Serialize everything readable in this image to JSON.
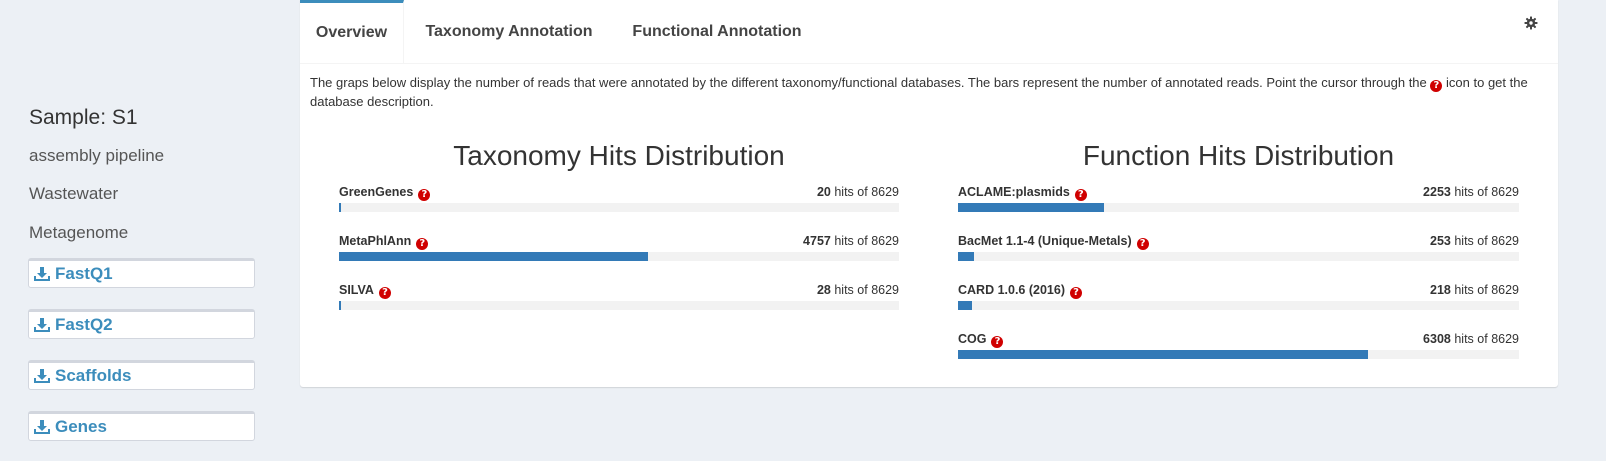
{
  "sidebar": {
    "sample_title": "Sample: S1",
    "meta": [
      "assembly pipeline",
      "Wastewater",
      "Metagenome"
    ],
    "downloads": [
      {
        "label": "FastQ1",
        "icon": "download-icon"
      },
      {
        "label": "FastQ2",
        "icon": "download-icon"
      },
      {
        "label": "Scaffolds",
        "icon": "download-icon"
      },
      {
        "label": "Genes",
        "icon": "download-icon"
      }
    ]
  },
  "tabs": [
    {
      "label": "Overview",
      "active": true
    },
    {
      "label": "Taxonomy Annotation",
      "active": false
    },
    {
      "label": "Functional Annotation",
      "active": false
    }
  ],
  "description": {
    "before_icon": "The graps below display the number of reads that were annotated by the different taxonomy/functional databases. The bars represent the number of annotated reads. Point the cursor through the",
    "after_icon": "icon to get the database description."
  },
  "hits_suffix": "hits of",
  "help_glyph": "?",
  "accent_color": "#3c8dbc",
  "bar_color": "#337ab7",
  "help_icon_color": "#d00000",
  "chart_data": [
    {
      "type": "bar",
      "title": "Taxonomy Hits Distribution",
      "total": 8629,
      "categories": [
        "GreenGenes",
        "MetaPhlAnn",
        "SILVA"
      ],
      "values": [
        20,
        4757,
        28
      ]
    },
    {
      "type": "bar",
      "title": "Function Hits Distribution",
      "total": 8629,
      "categories": [
        "ACLAME:plasmids",
        "BacMet 1.1-4 (Unique-Metals)",
        "CARD 1.0.6 (2016)",
        "COG"
      ],
      "values": [
        2253,
        253,
        218,
        6308
      ]
    }
  ]
}
